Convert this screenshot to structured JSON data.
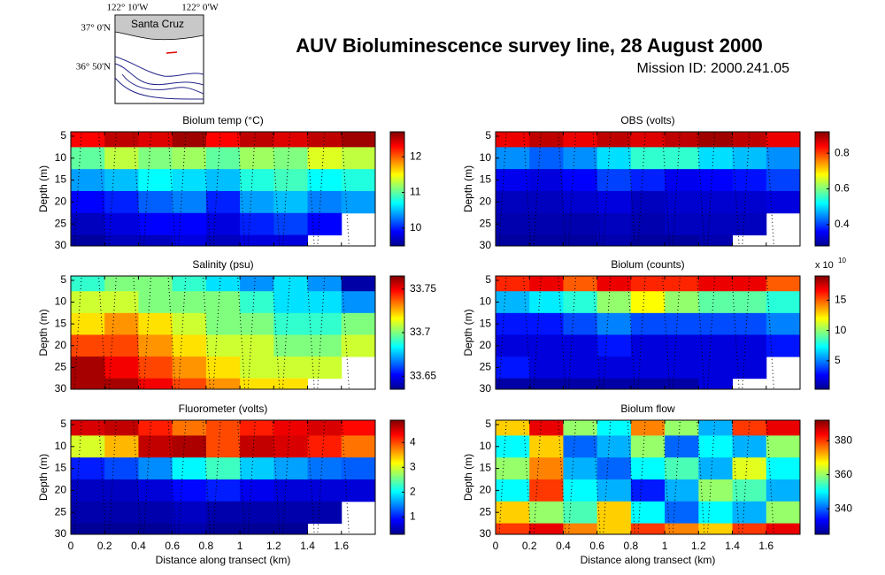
{
  "header": {
    "title": "AUV Bioluminescence survey line, 28 August 2000",
    "subtitle": "Mission ID: 2000.241.05"
  },
  "map": {
    "lon_labels": [
      "122° 10'W",
      "122° 0'W"
    ],
    "lat_labels": [
      "37° 0'N",
      "36° 50'N"
    ],
    "place": "Santa Cruz"
  },
  "chart_data": [
    {
      "type": "heatmap",
      "title": "Biolum temp (°C)",
      "ylabel": "Depth (m)",
      "xticklabels": false,
      "x": [
        0.1,
        0.3,
        0.5,
        0.7,
        0.9,
        1.1,
        1.3,
        1.5,
        1.7
      ],
      "y": [
        5,
        10,
        15,
        20,
        25,
        30
      ],
      "values": [
        [
          12.3,
          12.5,
          12.4,
          12.6,
          12.3,
          12.5,
          12.4,
          12.5,
          12.6
        ],
        [
          11.0,
          11.3,
          11.1,
          11.2,
          11.0,
          11.2,
          11.1,
          11.4,
          11.3
        ],
        [
          10.4,
          10.5,
          10.7,
          10.6,
          10.5,
          10.8,
          10.9,
          10.7,
          10.8
        ],
        [
          9.9,
          10.0,
          10.2,
          10.3,
          10.0,
          10.4,
          10.5,
          10.3,
          10.4
        ],
        [
          9.7,
          9.8,
          9.9,
          9.9,
          9.8,
          10.0,
          10.1,
          9.9,
          null
        ],
        [
          9.6,
          9.7,
          9.7,
          9.8,
          9.7,
          9.8,
          9.8,
          null,
          null
        ]
      ],
      "xlim": [
        0,
        1.8
      ],
      "xticks": [
        0,
        0.2,
        0.4,
        0.6,
        0.8,
        1,
        1.2,
        1.4,
        1.6
      ],
      "ylim": [
        4,
        30
      ],
      "yticks": [
        5,
        10,
        15,
        20,
        25,
        30
      ],
      "y_reversed": true,
      "clim": [
        9.5,
        12.7
      ],
      "cticks": [
        10,
        11,
        12
      ],
      "colormap": "jet"
    },
    {
      "type": "heatmap",
      "title": "OBS (volts)",
      "ylabel": "Depth (m)",
      "xticklabels": false,
      "x": [
        0.1,
        0.3,
        0.5,
        0.7,
        0.9,
        1.1,
        1.3,
        1.5,
        1.7
      ],
      "y": [
        5,
        10,
        15,
        20,
        25,
        30
      ],
      "values": [
        [
          0.85,
          0.88,
          0.85,
          0.88,
          0.86,
          0.88,
          0.9,
          0.88,
          0.85
        ],
        [
          0.45,
          0.42,
          0.45,
          0.5,
          0.55,
          0.55,
          0.5,
          0.48,
          0.45
        ],
        [
          0.35,
          0.34,
          0.36,
          0.4,
          0.38,
          0.35,
          0.36,
          0.37,
          0.4
        ],
        [
          0.32,
          0.32,
          0.33,
          0.34,
          0.32,
          0.33,
          0.33,
          0.33,
          0.34
        ],
        [
          0.31,
          0.31,
          0.31,
          0.32,
          0.31,
          0.32,
          0.32,
          0.32,
          null
        ],
        [
          0.3,
          0.3,
          0.3,
          0.31,
          0.3,
          0.3,
          0.31,
          null,
          null
        ]
      ],
      "xlim": [
        0,
        1.8
      ],
      "xticks": [
        0,
        0.2,
        0.4,
        0.6,
        0.8,
        1,
        1.2,
        1.4,
        1.6
      ],
      "ylim": [
        4,
        30
      ],
      "yticks": [
        5,
        10,
        15,
        20,
        25,
        30
      ],
      "y_reversed": true,
      "clim": [
        0.28,
        0.92
      ],
      "cticks": [
        0.4,
        0.6,
        0.8
      ],
      "colormap": "jet"
    },
    {
      "type": "heatmap",
      "title": "Salinity (psu)",
      "ylabel": "Depth (m)",
      "xticklabels": false,
      "x": [
        0.1,
        0.3,
        0.5,
        0.7,
        0.9,
        1.1,
        1.3,
        1.5,
        1.7
      ],
      "y": [
        5,
        10,
        15,
        20,
        25,
        30
      ],
      "values": [
        [
          33.69,
          33.7,
          33.7,
          33.69,
          33.68,
          33.67,
          33.68,
          33.67,
          33.64
        ],
        [
          33.71,
          33.71,
          33.7,
          33.7,
          33.7,
          33.69,
          33.68,
          33.68,
          33.67
        ],
        [
          33.72,
          33.73,
          33.72,
          33.71,
          33.7,
          33.7,
          33.69,
          33.69,
          33.7
        ],
        [
          33.74,
          33.74,
          33.73,
          33.72,
          33.71,
          33.71,
          33.7,
          33.7,
          33.71
        ],
        [
          33.76,
          33.75,
          33.74,
          33.73,
          33.72,
          33.71,
          33.71,
          33.71,
          null
        ],
        [
          33.76,
          33.76,
          33.75,
          33.74,
          33.73,
          33.72,
          33.72,
          null,
          null
        ]
      ],
      "xlim": [
        0,
        1.8
      ],
      "xticks": [
        0,
        0.2,
        0.4,
        0.6,
        0.8,
        1,
        1.2,
        1.4,
        1.6
      ],
      "ylim": [
        4,
        30
      ],
      "yticks": [
        5,
        10,
        15,
        20,
        25,
        30
      ],
      "y_reversed": true,
      "clim": [
        33.635,
        33.765
      ],
      "cticks": [
        33.65,
        33.7,
        33.75
      ],
      "colormap": "jet"
    },
    {
      "type": "heatmap",
      "title": "Biolum (counts)",
      "ylabel": "Depth (m)",
      "xticklabels": false,
      "x": [
        0.1,
        0.3,
        0.5,
        0.7,
        0.9,
        1.1,
        1.3,
        1.5,
        1.7
      ],
      "y": [
        5,
        10,
        15,
        20,
        25,
        30
      ],
      "values": [
        [
          16,
          17,
          15,
          17,
          16,
          16,
          17,
          17,
          15
        ],
        [
          6,
          7,
          8,
          10,
          12,
          10,
          9,
          9,
          8
        ],
        [
          3,
          3,
          4,
          5,
          4,
          4,
          4,
          4,
          5
        ],
        [
          2,
          2,
          2,
          3,
          2,
          2,
          2,
          2,
          3
        ],
        [
          3,
          2,
          2,
          2,
          2,
          2,
          2,
          2,
          null
        ],
        [
          1,
          1,
          1,
          1,
          1,
          1,
          2,
          null,
          null
        ]
      ],
      "xlim": [
        0,
        1.8
      ],
      "xticks": [
        0,
        0.2,
        0.4,
        0.6,
        0.8,
        1,
        1.2,
        1.4,
        1.6
      ],
      "ylim": [
        4,
        30
      ],
      "yticks": [
        5,
        10,
        15,
        20,
        25,
        30
      ],
      "y_reversed": true,
      "clim": [
        0.3,
        19
      ],
      "cticks": [
        5,
        10,
        15
      ],
      "cbar_multiplier": {
        "base": "x 10",
        "exponent": "10"
      },
      "colormap": "jet"
    },
    {
      "type": "heatmap",
      "title": "Fluorometer (volts)",
      "ylabel": "Depth (m)",
      "xlabel": "Distance along transect (km)",
      "xticklabels": true,
      "x": [
        0.1,
        0.3,
        0.5,
        0.7,
        0.9,
        1.1,
        1.3,
        1.5,
        1.7
      ],
      "y": [
        5,
        10,
        15,
        20,
        25,
        30
      ],
      "values": [
        [
          4.5,
          4.6,
          4.2,
          3.8,
          4.0,
          4.2,
          4.4,
          4.5,
          4.3
        ],
        [
          3.0,
          3.5,
          4.6,
          4.7,
          4.0,
          4.6,
          4.5,
          4.2,
          3.8
        ],
        [
          1.0,
          1.2,
          1.5,
          2.0,
          2.3,
          1.8,
          1.6,
          1.4,
          1.3
        ],
        [
          0.6,
          0.6,
          0.7,
          0.9,
          1.0,
          0.8,
          0.7,
          0.7,
          0.7
        ],
        [
          0.5,
          0.5,
          0.5,
          0.6,
          0.5,
          0.5,
          0.5,
          0.5,
          null
        ],
        [
          0.4,
          0.4,
          0.4,
          0.5,
          0.4,
          0.4,
          0.4,
          null,
          null
        ]
      ],
      "xlim": [
        0,
        1.8
      ],
      "xticks": [
        0,
        0.2,
        0.4,
        0.6,
        0.8,
        1,
        1.2,
        1.4,
        1.6
      ],
      "ylim": [
        4,
        30
      ],
      "yticks": [
        5,
        10,
        15,
        20,
        25,
        30
      ],
      "y_reversed": true,
      "clim": [
        0.3,
        4.9
      ],
      "cticks": [
        1,
        2,
        3,
        4
      ],
      "colormap": "jet"
    },
    {
      "type": "heatmap",
      "title": "Biolum flow",
      "ylabel": "Depth (m)",
      "xlabel": "Distance along transect (km)",
      "xticklabels": true,
      "x": [
        0.1,
        0.3,
        0.5,
        0.7,
        0.9,
        1.1,
        1.3,
        1.5,
        1.7
      ],
      "y": [
        5,
        10,
        15,
        20,
        25,
        30
      ],
      "values": [
        [
          370,
          385,
          360,
          350,
          375,
          360,
          345,
          380,
          385
        ],
        [
          350,
          370,
          340,
          345,
          360,
          340,
          350,
          345,
          360
        ],
        [
          360,
          375,
          345,
          340,
          350,
          355,
          345,
          365,
          350
        ],
        [
          350,
          380,
          350,
          345,
          335,
          345,
          360,
          355,
          345
        ],
        [
          370,
          360,
          355,
          370,
          350,
          340,
          350,
          345,
          360
        ],
        [
          380,
          385,
          375,
          370,
          380,
          375,
          370,
          380,
          385
        ]
      ],
      "xlim": [
        0,
        1.8
      ],
      "xticks": [
        0,
        0.2,
        0.4,
        0.6,
        0.8,
        1,
        1.2,
        1.4,
        1.6
      ],
      "ylim": [
        4,
        30
      ],
      "yticks": [
        5,
        10,
        15,
        20,
        25,
        30
      ],
      "y_reversed": true,
      "clim": [
        325,
        392
      ],
      "cticks": [
        340,
        360,
        380
      ],
      "colormap": "jet"
    }
  ]
}
